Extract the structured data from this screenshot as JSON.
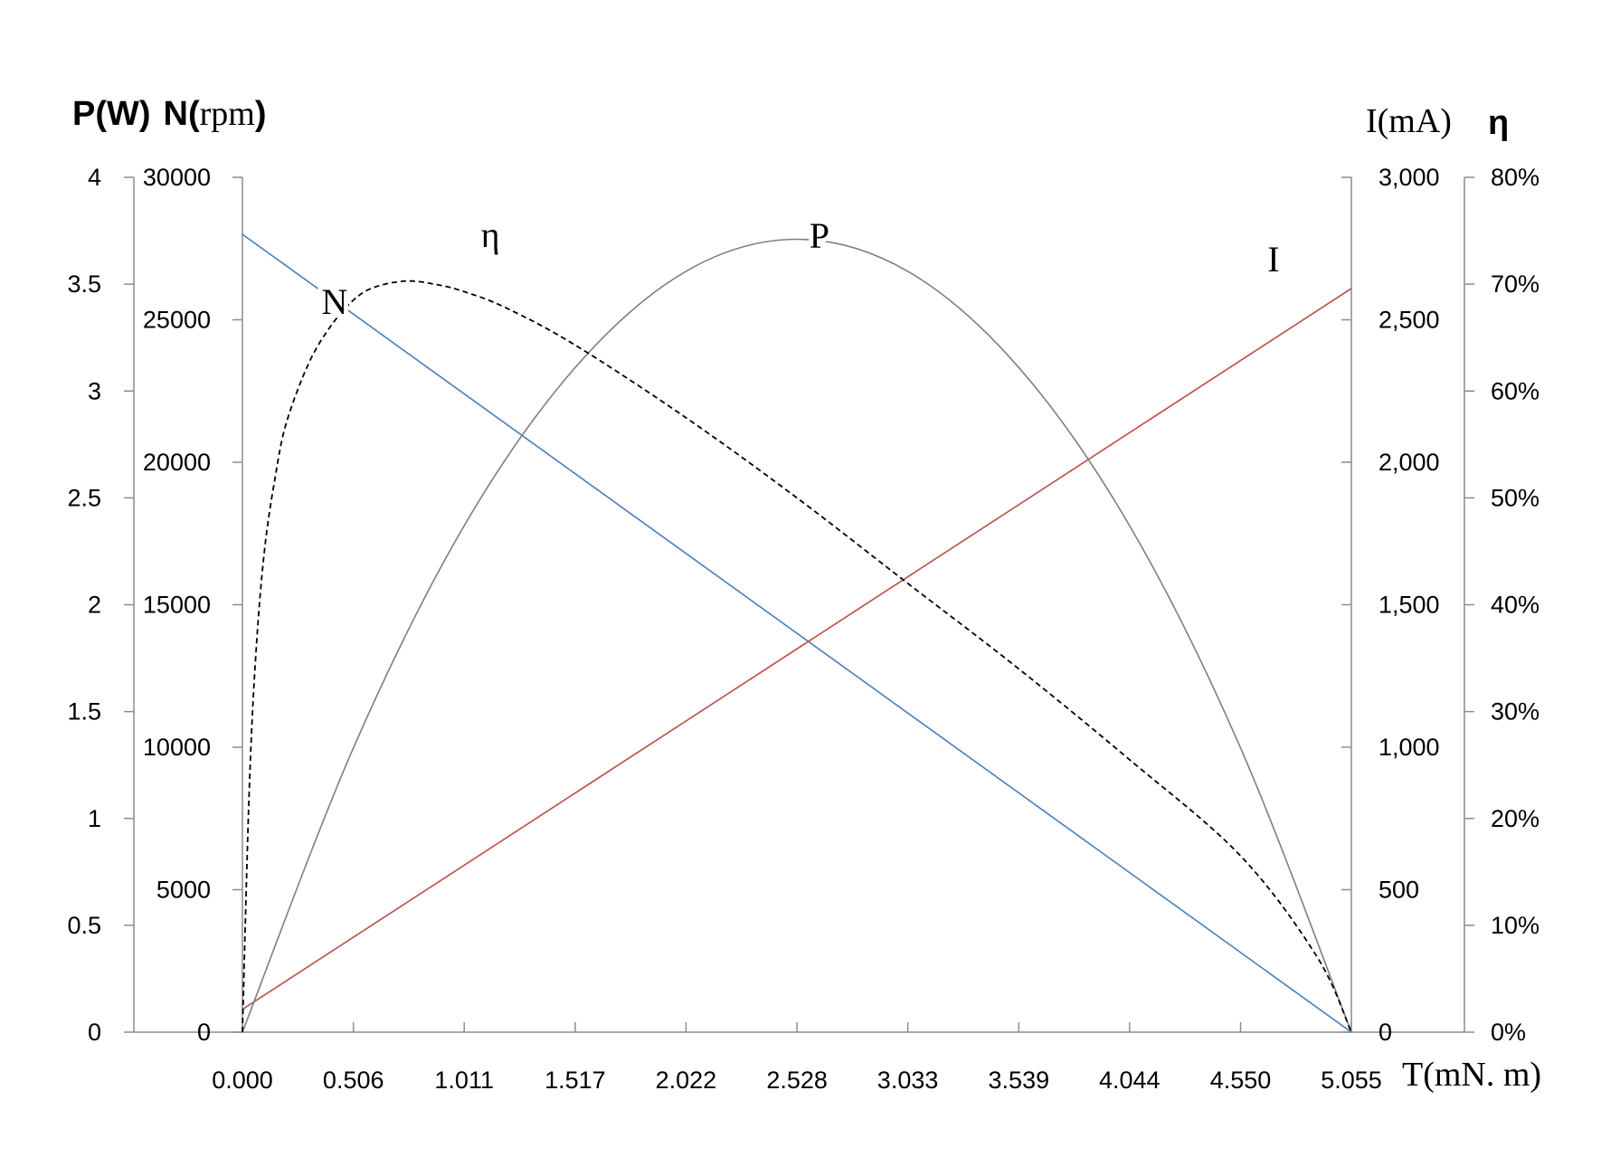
{
  "chart_data": {
    "type": "line",
    "title": "",
    "x": {
      "label": "T(mN. m)",
      "range": [
        0,
        5.055
      ],
      "ticks": [
        0,
        0.506,
        1.011,
        1.517,
        2.022,
        2.528,
        3.033,
        3.539,
        4.044,
        4.55,
        5.055
      ],
      "tick_labels": [
        "0.000",
        "0.506",
        "1.011",
        "1.517",
        "2.022",
        "2.528",
        "3.033",
        "3.539",
        "4.044",
        "4.550",
        "5.055"
      ]
    },
    "axes": {
      "p": {
        "label_bold": "P(W)",
        "range": [
          0,
          4
        ],
        "ticks": [
          0,
          0.5,
          1,
          1.5,
          2,
          2.5,
          3,
          3.5,
          4
        ],
        "tick_labels": [
          "0",
          "0.5",
          "1",
          "1.5",
          "2",
          "2.5",
          "3",
          "3.5",
          "4"
        ]
      },
      "n": {
        "label_bold": "N(",
        "label_serif": "rpm",
        "label_close": ")",
        "range": [
          0,
          30000
        ],
        "ticks": [
          0,
          5000,
          10000,
          15000,
          20000,
          25000,
          30000
        ],
        "tick_labels": [
          "0",
          "5000",
          "10000",
          "15000",
          "20000",
          "25000",
          "30000"
        ]
      },
      "i": {
        "label": "I(mA)",
        "range": [
          0,
          3000
        ],
        "ticks": [
          0,
          500,
          1000,
          1500,
          2000,
          2500,
          3000
        ],
        "tick_labels": [
          "0",
          "500",
          "1,000",
          "1,500",
          "2,000",
          "2,500",
          "3,000"
        ]
      },
      "eta": {
        "label": "η",
        "range": [
          0,
          0.8
        ],
        "ticks": [
          0,
          0.1,
          0.2,
          0.3,
          0.4,
          0.5,
          0.6,
          0.7,
          0.8
        ],
        "tick_labels": [
          "0%",
          "10%",
          "20%",
          "30%",
          "40%",
          "50%",
          "60%",
          "70%",
          "80%"
        ]
      }
    },
    "series": [
      {
        "name": "N",
        "axis": "n",
        "color": "#4a7ebb",
        "dash": false,
        "x": [
          0,
          5.055
        ],
        "y": [
          28000,
          0
        ]
      },
      {
        "name": "I",
        "axis": "i",
        "color": "#be4b48",
        "dash": false,
        "x": [
          0,
          5.055
        ],
        "y": [
          80,
          2610
        ]
      },
      {
        "name": "P",
        "axis": "p",
        "color": "#7f7f7f",
        "dash": false,
        "x": [
          0,
          0.506,
          1.011,
          1.517,
          2.022,
          2.528,
          3.033,
          3.539,
          4.044,
          4.55,
          5.055
        ],
        "y": [
          0,
          1.33,
          2.37,
          3.11,
          3.56,
          3.71,
          3.56,
          3.11,
          2.37,
          1.33,
          0
        ]
      },
      {
        "name": "η",
        "axis": "eta",
        "color": "#000000",
        "dash": true,
        "x": [
          0,
          0.03,
          0.06,
          0.1,
          0.15,
          0.2,
          0.3,
          0.4,
          0.506,
          0.6,
          0.75,
          0.9,
          1.011,
          1.2,
          1.517,
          2.022,
          2.528,
          3.033,
          3.539,
          4.044,
          4.55,
          4.9,
          5.055
        ],
        "y": [
          0,
          0.22,
          0.35,
          0.45,
          0.52,
          0.57,
          0.625,
          0.66,
          0.685,
          0.697,
          0.703,
          0.699,
          0.693,
          0.678,
          0.643,
          0.575,
          0.5,
          0.42,
          0.34,
          0.255,
          0.165,
          0.07,
          0
        ]
      }
    ],
    "annotations": [
      {
        "text": "N",
        "x": 0.42,
        "y": 25200,
        "axis": "n"
      },
      {
        "text": "η",
        "x": 1.13,
        "y": 0.735,
        "axis": "eta"
      },
      {
        "text": "P",
        "x": 2.63,
        "y": 3.67,
        "axis": "p"
      },
      {
        "text": "I",
        "x": 4.7,
        "y": 2670,
        "axis": "i"
      }
    ],
    "grid": false,
    "legend": "none"
  }
}
